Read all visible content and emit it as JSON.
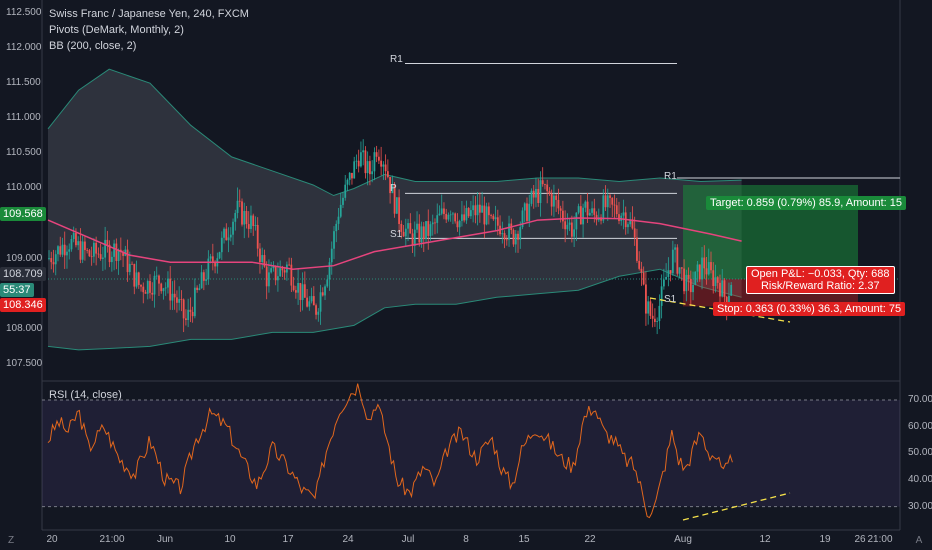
{
  "header": {
    "symbol": "Swiss Franc / Japanese Yen, 240, FXCM",
    "indicator1": "Pivots (DeMark, Monthly, 2)",
    "indicator2": "BB (200, close, 2)",
    "rsi_label": "RSI (14, close)"
  },
  "badges": {
    "price1": "109.568",
    "price2": "108.709",
    "countdown": "55:37",
    "price3": "108.346"
  },
  "pivots": {
    "r1": "R1",
    "p": "P",
    "s1": "S1",
    "r1b": "R1",
    "s1b": "S1"
  },
  "position": {
    "target": "Target: 0.859 (0.79%) 85.9, Amount: 15",
    "open_pl": "Open P&L: −0.033, Qty: 688",
    "risk": "Risk/Reward Ratio: 2.37",
    "stop": "Stop: 0.363 (0.33%) 36.3, Amount: 75"
  },
  "corner": {
    "z": "Z",
    "a": "A"
  },
  "colors": {
    "background": "#131722",
    "up": "#26a69a",
    "down": "#ef5350",
    "bb_basis": "#e6447d",
    "bb_band": "#2a8a78",
    "rsi": "#e2671d",
    "target": "#1a8a3a",
    "stop": "#e02020",
    "trend": "#f5e14a"
  },
  "chart_data": {
    "type": "candlestick",
    "title": "Swiss Franc / Japanese Yen, 240, FXCM",
    "y_ticks": [
      "112.500",
      "112.000",
      "111.500",
      "111.000",
      "110.500",
      "110.000",
      "109.000",
      "108.000",
      "107.500"
    ],
    "ylim": [
      107.3,
      112.6
    ],
    "x_ticks": [
      "20",
      "21:00",
      "Jun",
      "10",
      "17",
      "24",
      "Jul",
      "8",
      "15",
      "22",
      "Aug",
      "12",
      "19",
      "26",
      "21:00"
    ],
    "rsi_ticks": [
      "70.00",
      "60.00",
      "50.00",
      "40.00",
      "30.00"
    ],
    "rsi_ylim": [
      25,
      76
    ],
    "rsi_levels": [
      70,
      30
    ],
    "pivot_levels": {
      "R1": 111.78,
      "P": 109.93,
      "S1": 109.29
    },
    "close_path": [
      [
        0,
        109.0
      ],
      [
        20,
        109.25
      ],
      [
        40,
        109.05
      ],
      [
        70,
        109.15
      ],
      [
        90,
        108.6
      ],
      [
        110,
        108.7
      ],
      [
        125,
        108.45
      ],
      [
        135,
        108.1
      ],
      [
        155,
        108.8
      ],
      [
        170,
        109.2
      ],
      [
        185,
        109.7
      ],
      [
        200,
        109.5
      ],
      [
        215,
        108.7
      ],
      [
        235,
        108.9
      ],
      [
        250,
        108.45
      ],
      [
        262,
        108.25
      ],
      [
        275,
        108.9
      ],
      [
        285,
        109.7
      ],
      [
        295,
        110.1
      ],
      [
        305,
        110.5
      ],
      [
        315,
        110.2
      ],
      [
        322,
        110.6
      ],
      [
        330,
        110.4
      ],
      [
        338,
        109.9
      ],
      [
        345,
        109.55
      ],
      [
        355,
        109.3
      ],
      [
        365,
        109.35
      ],
      [
        375,
        109.4
      ],
      [
        385,
        109.6
      ],
      [
        395,
        109.75
      ],
      [
        405,
        109.5
      ],
      [
        415,
        109.65
      ],
      [
        425,
        109.7
      ],
      [
        435,
        109.45
      ],
      [
        445,
        109.5
      ],
      [
        455,
        109.3
      ],
      [
        465,
        109.55
      ],
      [
        475,
        109.85
      ],
      [
        485,
        110.0
      ],
      [
        495,
        109.85
      ],
      [
        505,
        109.6
      ],
      [
        515,
        109.4
      ],
      [
        525,
        109.75
      ],
      [
        535,
        109.6
      ],
      [
        545,
        109.75
      ],
      [
        555,
        109.7
      ],
      [
        565,
        109.65
      ],
      [
        570,
        109.55
      ],
      [
        578,
        109.1
      ],
      [
        585,
        108.4
      ],
      [
        592,
        108.15
      ],
      [
        600,
        108.35
      ],
      [
        607,
        108.8
      ],
      [
        613,
        109.05
      ],
      [
        620,
        108.85
      ],
      [
        627,
        108.55
      ],
      [
        635,
        108.7
      ],
      [
        642,
        108.95
      ],
      [
        650,
        108.75
      ],
      [
        657,
        108.7
      ],
      [
        665,
        108.4
      ],
      [
        670,
        108.71
      ]
    ],
    "bb_basis": [
      [
        0,
        109.55
      ],
      [
        40,
        109.3
      ],
      [
        80,
        109.05
      ],
      [
        120,
        108.95
      ],
      [
        160,
        108.95
      ],
      [
        200,
        108.95
      ],
      [
        240,
        108.85
      ],
      [
        280,
        108.9
      ],
      [
        320,
        109.1
      ],
      [
        360,
        109.2
      ],
      [
        400,
        109.3
      ],
      [
        440,
        109.4
      ],
      [
        480,
        109.55
      ],
      [
        520,
        109.58
      ],
      [
        560,
        109.57
      ],
      [
        600,
        109.5
      ],
      [
        650,
        109.35
      ],
      [
        680,
        109.25
      ]
    ],
    "bb_upper": [
      [
        0,
        110.85
      ],
      [
        30,
        111.4
      ],
      [
        60,
        111.7
      ],
      [
        100,
        111.5
      ],
      [
        140,
        110.9
      ],
      [
        180,
        110.45
      ],
      [
        220,
        110.25
      ],
      [
        260,
        110.05
      ],
      [
        280,
        109.9
      ],
      [
        300,
        110.0
      ],
      [
        330,
        110.2
      ],
      [
        360,
        110.1
      ],
      [
        400,
        110.1
      ],
      [
        440,
        110.1
      ],
      [
        480,
        110.15
      ],
      [
        520,
        110.15
      ],
      [
        560,
        110.1
      ],
      [
        600,
        110.15
      ],
      [
        640,
        110.1
      ],
      [
        680,
        110.12
      ]
    ],
    "bb_lower": [
      [
        0,
        107.75
      ],
      [
        30,
        107.7
      ],
      [
        60,
        107.72
      ],
      [
        100,
        107.75
      ],
      [
        140,
        107.85
      ],
      [
        180,
        107.85
      ],
      [
        220,
        107.95
      ],
      [
        260,
        107.95
      ],
      [
        300,
        108.05
      ],
      [
        330,
        108.3
      ],
      [
        360,
        108.35
      ],
      [
        400,
        108.35
      ],
      [
        440,
        108.45
      ],
      [
        480,
        108.5
      ],
      [
        520,
        108.55
      ],
      [
        560,
        108.75
      ],
      [
        600,
        108.85
      ],
      [
        640,
        108.6
      ],
      [
        680,
        108.45
      ]
    ],
    "rsi_path": [
      [
        0,
        55
      ],
      [
        10,
        62
      ],
      [
        20,
        58
      ],
      [
        30,
        66
      ],
      [
        40,
        52
      ],
      [
        55,
        60
      ],
      [
        70,
        48
      ],
      [
        85,
        42
      ],
      [
        100,
        55
      ],
      [
        115,
        40
      ],
      [
        130,
        37
      ],
      [
        145,
        55
      ],
      [
        160,
        65
      ],
      [
        175,
        60
      ],
      [
        190,
        48
      ],
      [
        205,
        38
      ],
      [
        220,
        52
      ],
      [
        235,
        45
      ],
      [
        250,
        36
      ],
      [
        262,
        33
      ],
      [
        272,
        50
      ],
      [
        285,
        66
      ],
      [
        295,
        72
      ],
      [
        305,
        76
      ],
      [
        315,
        62
      ],
      [
        322,
        70
      ],
      [
        332,
        56
      ],
      [
        342,
        40
      ],
      [
        355,
        35
      ],
      [
        368,
        45
      ],
      [
        380,
        38
      ],
      [
        392,
        52
      ],
      [
        405,
        58
      ],
      [
        420,
        48
      ],
      [
        435,
        56
      ],
      [
        445,
        44
      ],
      [
        455,
        38
      ],
      [
        465,
        52
      ],
      [
        478,
        60
      ],
      [
        490,
        55
      ],
      [
        503,
        48
      ],
      [
        515,
        45
      ],
      [
        525,
        63
      ],
      [
        535,
        68
      ],
      [
        545,
        58
      ],
      [
        555,
        55
      ],
      [
        565,
        48
      ],
      [
        575,
        45
      ],
      [
        582,
        36
      ],
      [
        588,
        28
      ],
      [
        595,
        30
      ],
      [
        605,
        46
      ],
      [
        612,
        58
      ],
      [
        618,
        48
      ],
      [
        625,
        44
      ],
      [
        633,
        52
      ],
      [
        640,
        58
      ],
      [
        648,
        50
      ],
      [
        655,
        49
      ],
      [
        662,
        42
      ],
      [
        667,
        45
      ],
      [
        672,
        50
      ]
    ]
  }
}
